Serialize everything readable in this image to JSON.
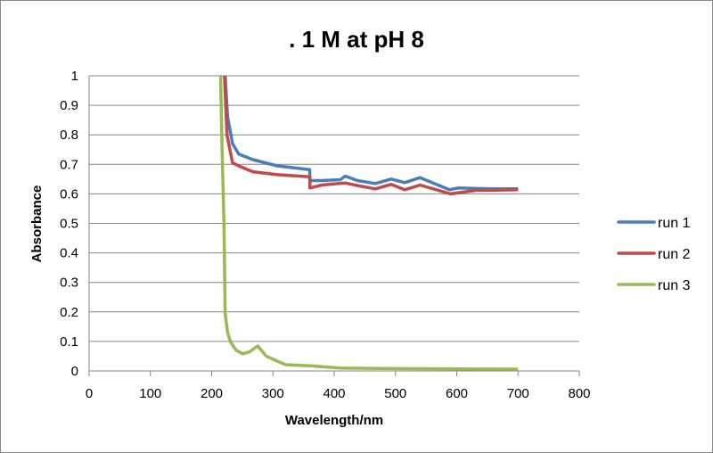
{
  "chart_data": {
    "type": "line",
    "title": ". 1 M at pH 8",
    "xlabel": "Wavelength/nm",
    "ylabel": "Absorbance",
    "xlim": [
      0,
      800
    ],
    "ylim": [
      0,
      1
    ],
    "xticks": [
      0,
      100,
      200,
      300,
      400,
      500,
      600,
      700,
      800
    ],
    "yticks": [
      0,
      0.1,
      0.2,
      0.3,
      0.4,
      0.5,
      0.6,
      0.7,
      0.8,
      0.9,
      1
    ],
    "grid": "horizontal major",
    "legend_position": "right",
    "series": [
      {
        "name": "run 1",
        "color": "#4a7ebb",
        "x": [
          222,
          226,
          234,
          244,
          267,
          307,
          360,
          360.5,
          380,
          410,
          418,
          438,
          467,
          493,
          515,
          540,
          588,
          602,
          632,
          660,
          700
        ],
        "y": [
          1.0,
          0.86,
          0.77,
          0.735,
          0.716,
          0.695,
          0.682,
          0.645,
          0.645,
          0.648,
          0.66,
          0.645,
          0.635,
          0.65,
          0.638,
          0.655,
          0.614,
          0.62,
          0.618,
          0.617,
          0.617
        ]
      },
      {
        "name": "run 2",
        "color": "#be4b48",
        "x": [
          221,
          225,
          234,
          244,
          267,
          307,
          360,
          360.5,
          380,
          418,
          438,
          467,
          493,
          515,
          540,
          590,
          632,
          660,
          700
        ],
        "y": [
          1.0,
          0.8,
          0.705,
          0.695,
          0.675,
          0.665,
          0.658,
          0.62,
          0.63,
          0.637,
          0.628,
          0.617,
          0.632,
          0.614,
          0.63,
          0.6,
          0.612,
          0.612,
          0.614
        ]
      },
      {
        "name": "run 3",
        "color": "#98b954",
        "x": [
          214.5,
          217,
          220,
          222,
          226,
          231,
          240,
          251,
          262,
          275,
          281,
          289,
          305,
          321,
          365,
          409,
          500,
          600,
          700
        ],
        "y": [
          1.0,
          0.75,
          0.5,
          0.196,
          0.13,
          0.097,
          0.07,
          0.058,
          0.065,
          0.085,
          0.07,
          0.05,
          0.035,
          0.021,
          0.017,
          0.01,
          0.008,
          0.007,
          0.006
        ]
      }
    ]
  }
}
